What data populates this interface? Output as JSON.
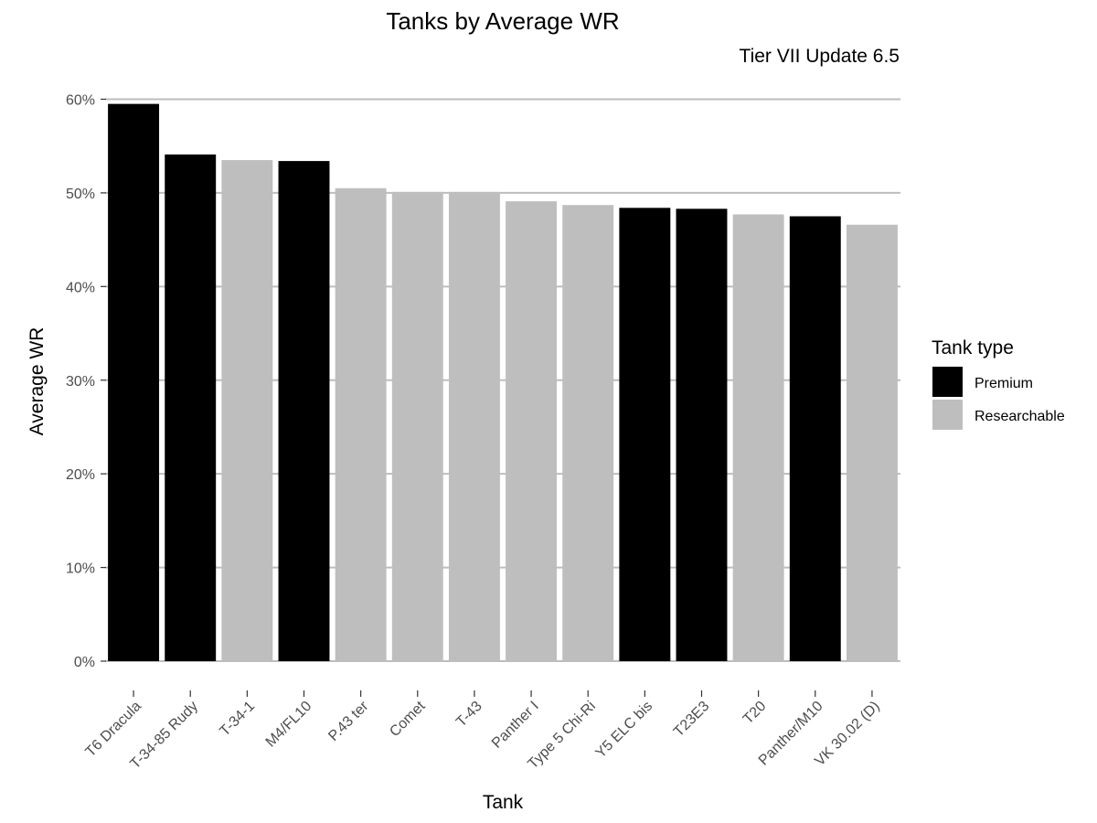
{
  "chart_data": {
    "type": "bar",
    "title": "Tanks by Average WR",
    "subtitle": "Tier VII Update 6.5",
    "xlabel": "Tank",
    "ylabel": "Average WR",
    "ylim": [
      0,
      60
    ],
    "yticks": [
      0,
      10,
      20,
      30,
      40,
      50,
      60
    ],
    "ytick_labels": [
      "0%",
      "10%",
      "20%",
      "30%",
      "40%",
      "50%",
      "60%"
    ],
    "grid": "horizontal",
    "legend": {
      "title": "Tank type",
      "position": "right",
      "entries": [
        {
          "name": "Premium",
          "color": "#000000"
        },
        {
          "name": "Researchable",
          "color": "#bebebe"
        }
      ]
    },
    "categories": [
      "T6 Dracula",
      "T-34-85 Rudy",
      "T-34-1",
      "M4/FL10",
      "P.43 ter",
      "Comet",
      "T-43",
      "Panther I",
      "Type 5 Chi-Ri",
      "Y5 ELC bis",
      "T23E3",
      "T20",
      "Panther/M10",
      "VK 30.02 (D)"
    ],
    "values": [
      59.5,
      54.1,
      53.5,
      53.4,
      50.5,
      50.1,
      50.1,
      49.1,
      48.7,
      48.4,
      48.3,
      47.7,
      47.5,
      46.6
    ],
    "types": [
      "Premium",
      "Premium",
      "Researchable",
      "Premium",
      "Researchable",
      "Researchable",
      "Researchable",
      "Researchable",
      "Researchable",
      "Premium",
      "Premium",
      "Researchable",
      "Premium",
      "Researchable"
    ]
  }
}
